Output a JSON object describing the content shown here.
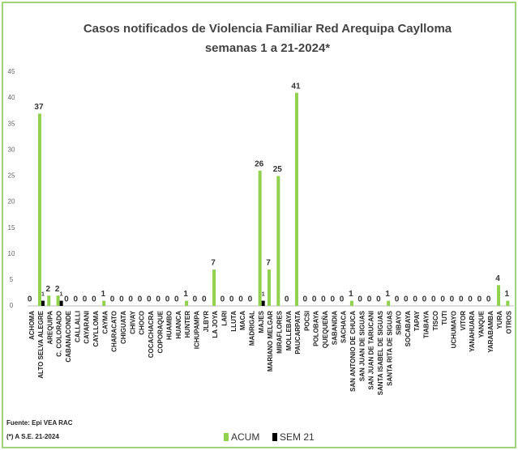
{
  "chart_data": {
    "type": "bar",
    "title": "Casos notificados  de Violencia Familiar Red Arequipa Caylloma",
    "subtitle": "semanas 1 a 21-2024*",
    "categories": [
      "ACHOMA",
      "ALTO SELVA ALEGRE",
      "AREQUIPA",
      "C. COLORADO",
      "CABANACONDE",
      "CALLALLI",
      "CAYARANI",
      "CAYLLOMA",
      "CAYMA",
      "CHARACATO",
      "CHIGUATA",
      "CHIVAY",
      "CHOCO",
      "COCACHACRA",
      "COPORAQUE",
      "HUAMBO",
      "HUANCA",
      "HUNTER",
      "ICHUPAMPA",
      "JLBYR",
      "LA JOYA",
      "LARI",
      "LLUTA",
      "MACA",
      "MADRIGAL",
      "MAJES",
      "MARIANO MELGAR",
      "MIRAFLORES",
      "MOLLEBAYA",
      "PAUCARPATA",
      "POCSI",
      "POLOBAYA",
      "QUEQUEÑA",
      "SABANDIA",
      "SACHACA",
      "SAN ANTONIO DE CHUCA",
      "SAN JUAN DE SIGUAS",
      "SAN JUAN DE TARUCANI",
      "SANTA ISABEL DE SIGUAS",
      "SANTA RITA DE SIGUAS",
      "SIBAYO",
      "SOCABAYA",
      "TAPAY",
      "TIABAYA",
      "TISCO",
      "TUTI",
      "UCHUMAYO",
      "VITOR",
      "YANAHUARA",
      "YANQUE",
      "YARABAMBA",
      "YURA",
      "OTROS"
    ],
    "series": [
      {
        "name": "ACUM",
        "color": "#92d050",
        "values": [
          0,
          37,
          2,
          2,
          0,
          0,
          0,
          0,
          1,
          0,
          0,
          0,
          0,
          0,
          0,
          0,
          0,
          1,
          0,
          0,
          7,
          0,
          0,
          0,
          0,
          26,
          7,
          25,
          0,
          41,
          0,
          0,
          0,
          0,
          0,
          1,
          0,
          0,
          0,
          1,
          0,
          0,
          0,
          0,
          0,
          0,
          0,
          0,
          0,
          0,
          0,
          4,
          1
        ]
      },
      {
        "name": "SEM 21",
        "color": "#000000",
        "values": [
          0,
          1,
          0,
          1,
          0,
          0,
          0,
          0,
          0,
          0,
          0,
          0,
          0,
          0,
          0,
          0,
          0,
          0,
          0,
          0,
          0,
          0,
          0,
          0,
          0,
          1,
          0,
          0,
          0,
          0,
          0,
          0,
          0,
          0,
          0,
          0,
          0,
          0,
          0,
          0,
          0,
          0,
          0,
          0,
          0,
          0,
          0,
          0,
          0,
          0,
          0,
          0,
          0
        ],
        "value_labels": [
          null,
          "1",
          null,
          "1",
          null,
          null,
          null,
          null,
          null,
          null,
          null,
          null,
          null,
          null,
          null,
          null,
          null,
          null,
          null,
          null,
          null,
          null,
          null,
          null,
          null,
          "1",
          null,
          null,
          null,
          null,
          null,
          null,
          null,
          null,
          null,
          null,
          null,
          null,
          null,
          null,
          null,
          null,
          null,
          null,
          null,
          null,
          null,
          null,
          null,
          null,
          null,
          null,
          null
        ]
      }
    ],
    "ylim": [
      0,
      45
    ],
    "yticks": [
      0,
      5,
      10,
      15,
      20,
      25,
      30,
      35,
      40,
      45
    ],
    "grid": false,
    "notes": [
      "Fuente: Epi VEA RAC",
      "(*) A S.E. 21-2024"
    ]
  }
}
